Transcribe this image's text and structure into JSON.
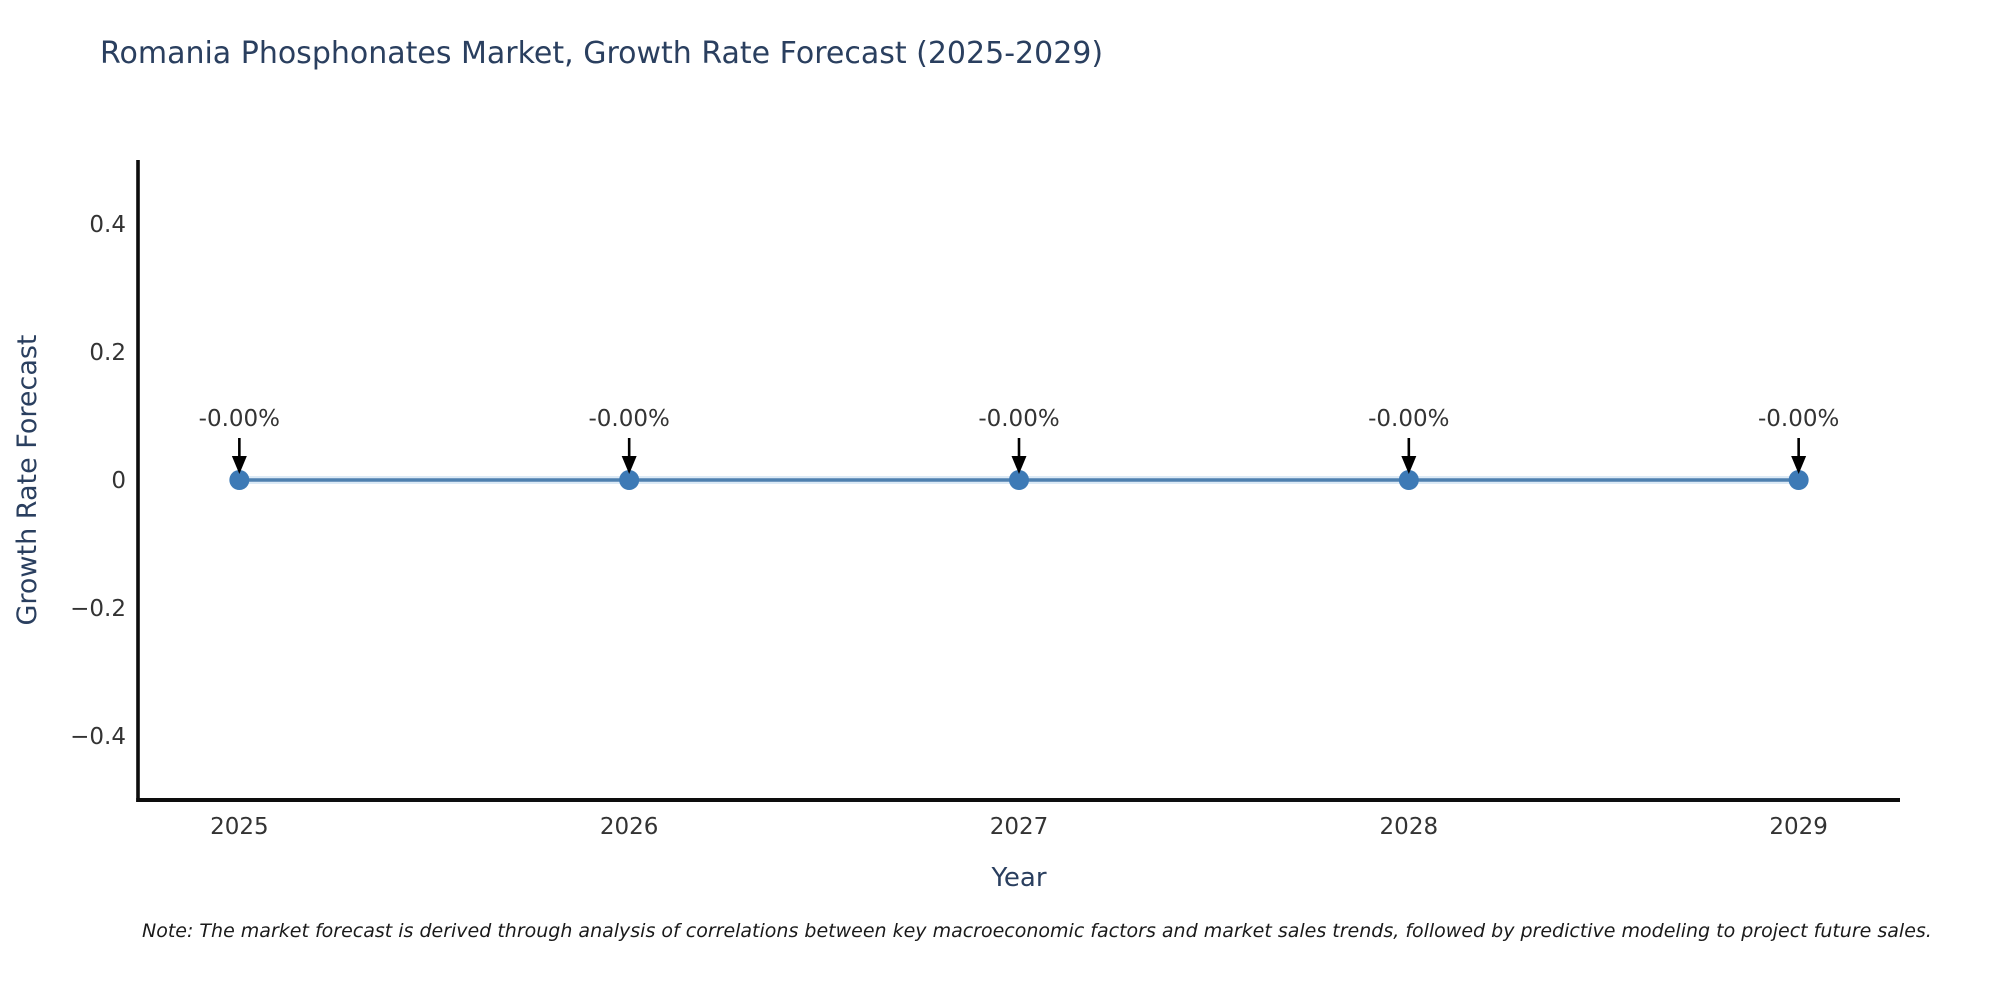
{
  "title": "Romania Phosphonates Market, Growth Rate Forecast (2025-2029)",
  "note": "Note: The market forecast is derived through analysis of correlations between key macroeconomic factors and market sales trends, followed by predictive modeling to project future sales.",
  "chart_data": {
    "type": "line",
    "title": "Romania Phosphonates Market, Growth Rate Forecast (2025-2029)",
    "xlabel": "Year",
    "ylabel": "Growth Rate Forecast",
    "x": [
      2025,
      2026,
      2027,
      2028,
      2029
    ],
    "values": [
      0,
      0,
      0,
      0,
      0
    ],
    "point_labels": [
      "-0.00%",
      "-0.00%",
      "-0.00%",
      "-0.00%",
      "-0.00%"
    ],
    "xtick_labels": [
      "2025",
      "2026",
      "2027",
      "2028",
      "2029"
    ],
    "yticks": [
      0.4,
      0.2,
      0,
      -0.2,
      -0.4
    ],
    "ytick_labels": [
      "0.4",
      "0.2",
      "0",
      "−0.2",
      "−0.4"
    ],
    "xlim": [
      2024.74,
      2029.26
    ],
    "ylim": [
      -0.5,
      0.5
    ],
    "grid": false,
    "legend": "none",
    "colors": {
      "line": "#4e80af",
      "line_halo": "#cde1f2",
      "marker": "#3d7ab6",
      "arrow": "#000000",
      "axis": "#0d0d0d",
      "tick_text": "#333333",
      "annotation_text": "#333333",
      "label_text": "#2a3f5f",
      "title_text": "#2a3f5f",
      "background": "#ffffff"
    }
  }
}
